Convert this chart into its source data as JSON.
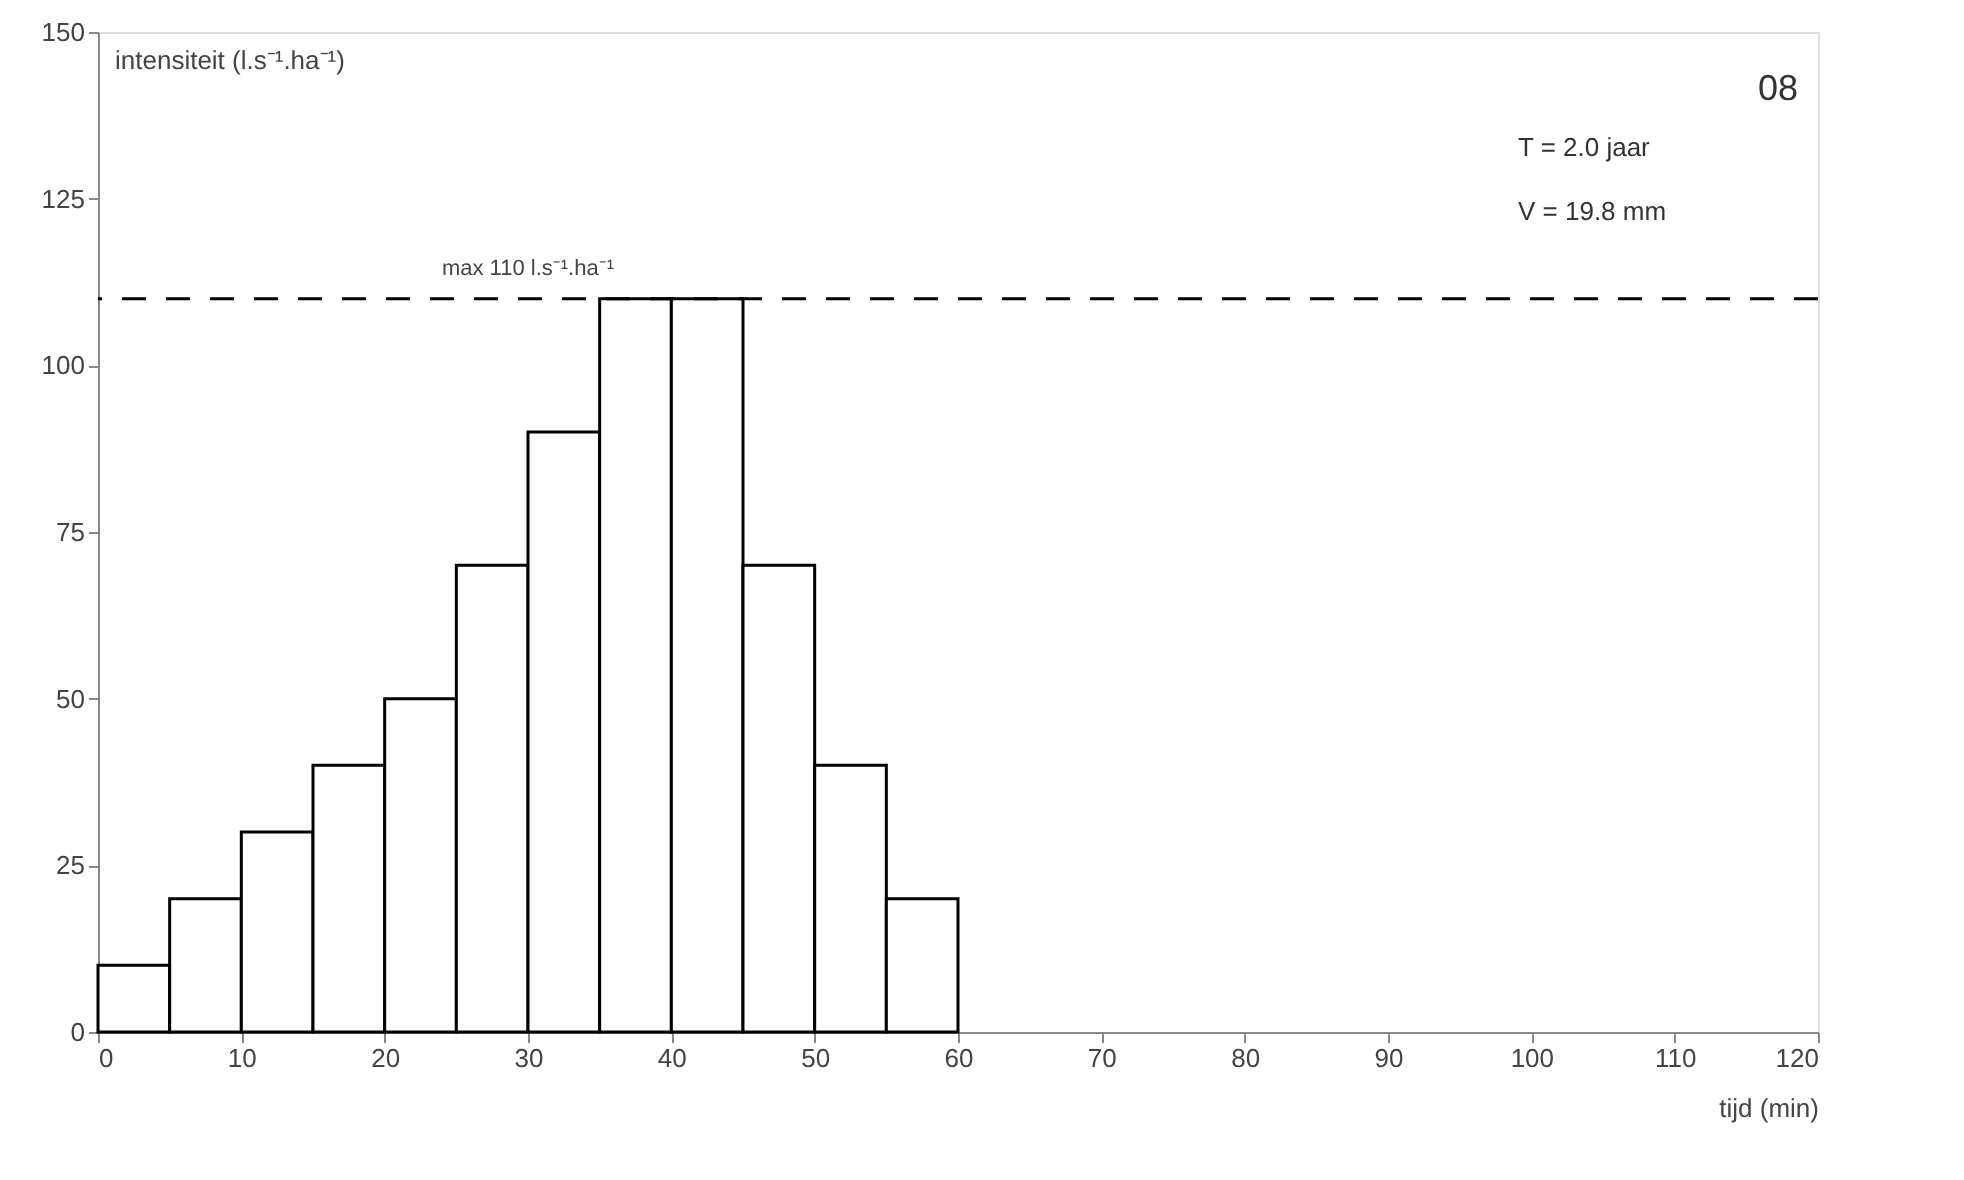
{
  "chart_data": {
    "type": "histogram",
    "xlabel": "tijd (min)",
    "ylabel": "intensiteit (l.s⁻¹.ha⁻¹)",
    "bins": [
      0,
      5,
      10,
      15,
      20,
      25,
      30,
      35,
      40,
      45,
      50,
      55,
      60
    ],
    "values": [
      10,
      20,
      30,
      40,
      50,
      70,
      90,
      110,
      110,
      70,
      40,
      20
    ],
    "color": "#ffffff",
    "xlim": [
      0,
      120
    ],
    "xticks": [
      0,
      10,
      20,
      30,
      40,
      50,
      60,
      70,
      80,
      90,
      100,
      110,
      120
    ],
    "ylim": [
      0,
      150
    ],
    "yticks": [
      0,
      25,
      50,
      75,
      100,
      125,
      150
    ],
    "grid": false,
    "ref_lines": [
      {
        "axis": "y",
        "value": 110,
        "label": "max 110 l.s⁻¹.ha⁻¹",
        "line_style": "dashed",
        "color": "#000000"
      }
    ],
    "annotations": [
      "08",
      "T =   2.0 jaar",
      "V = 19.8 mm"
    ]
  }
}
